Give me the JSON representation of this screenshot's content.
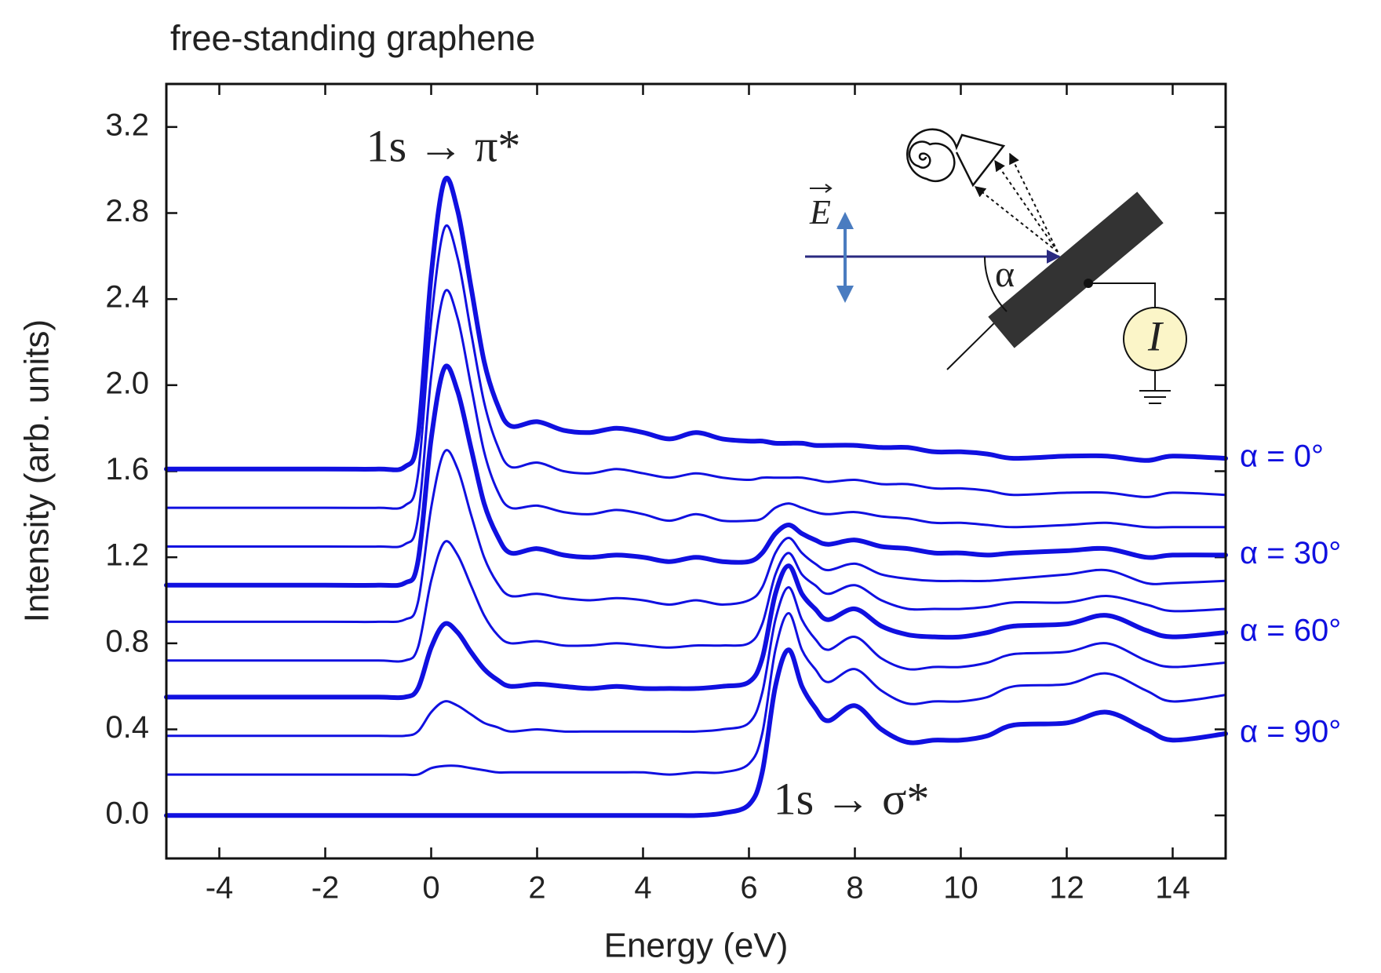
{
  "chart_data": {
    "type": "line",
    "title": "free-standing graphene",
    "xlabel": "Energy (eV)",
    "ylabel": "Intensity (arb. units)",
    "xlim": [
      -5,
      15
    ],
    "ylim": [
      -0.2,
      3.4
    ],
    "xticks": [
      -4,
      -2,
      0,
      2,
      4,
      6,
      8,
      10,
      12,
      14
    ],
    "yticks": [
      {
        "value": 0,
        "label": "0.0"
      },
      0.4,
      0.8,
      1.2,
      1.6,
      {
        "value": 2,
        "label": "2.0"
      },
      2.4,
      2.8,
      3.2
    ],
    "annotations": [
      "1s → π*",
      "1s → σ*"
    ],
    "x": [
      -5,
      -2,
      -1,
      -0.5,
      -0.25,
      0,
      0.25,
      0.5,
      0.75,
      1,
      1.25,
      1.5,
      2,
      2.5,
      3,
      3.5,
      4,
      4.5,
      5,
      5.5,
      6,
      6.25,
      6.5,
      6.75,
      7,
      7.25,
      7.5,
      8,
      8.5,
      9,
      9.5,
      10,
      10.5,
      11,
      12,
      12.75,
      13.5,
      14,
      15
    ],
    "series": [
      {
        "name": "α = 0°",
        "color": "#1010e0",
        "values": [
          1.61,
          1.61,
          1.61,
          1.62,
          1.76,
          2.51,
          2.95,
          2.81,
          2.46,
          2.11,
          1.91,
          1.81,
          1.83,
          1.79,
          1.78,
          1.8,
          1.78,
          1.75,
          1.78,
          1.75,
          1.74,
          1.74,
          1.73,
          1.73,
          1.73,
          1.72,
          1.72,
          1.72,
          1.71,
          1.71,
          1.69,
          1.69,
          1.68,
          1.66,
          1.67,
          1.67,
          1.65,
          1.67,
          1.66
        ]
      },
      {
        "color": "#1010e0",
        "values": [
          1.43,
          1.43,
          1.43,
          1.44,
          1.58,
          2.3,
          2.73,
          2.59,
          2.25,
          1.92,
          1.72,
          1.62,
          1.64,
          1.6,
          1.59,
          1.61,
          1.59,
          1.57,
          1.59,
          1.57,
          1.56,
          1.57,
          1.57,
          1.57,
          1.57,
          1.56,
          1.55,
          1.56,
          1.54,
          1.54,
          1.52,
          1.52,
          1.51,
          1.49,
          1.5,
          1.5,
          1.48,
          1.5,
          1.49
        ]
      },
      {
        "color": "#1010e0",
        "values": [
          1.25,
          1.25,
          1.25,
          1.26,
          1.38,
          2.04,
          2.43,
          2.31,
          2.0,
          1.69,
          1.51,
          1.43,
          1.44,
          1.41,
          1.4,
          1.42,
          1.4,
          1.37,
          1.4,
          1.37,
          1.37,
          1.38,
          1.43,
          1.45,
          1.43,
          1.41,
          1.4,
          1.41,
          1.39,
          1.38,
          1.36,
          1.36,
          1.35,
          1.34,
          1.35,
          1.36,
          1.34,
          1.34,
          1.34
        ]
      },
      {
        "name": "α = 30°",
        "color": "#1010e0",
        "values": [
          1.07,
          1.07,
          1.07,
          1.08,
          1.18,
          1.75,
          2.08,
          1.97,
          1.71,
          1.45,
          1.3,
          1.22,
          1.24,
          1.21,
          1.2,
          1.21,
          1.2,
          1.18,
          1.2,
          1.18,
          1.18,
          1.22,
          1.31,
          1.35,
          1.31,
          1.28,
          1.26,
          1.28,
          1.25,
          1.24,
          1.22,
          1.22,
          1.21,
          1.22,
          1.23,
          1.24,
          1.2,
          1.21,
          1.21
        ]
      },
      {
        "color": "#1010e0",
        "values": [
          0.9,
          0.9,
          0.9,
          0.91,
          0.99,
          1.43,
          1.69,
          1.61,
          1.4,
          1.2,
          1.08,
          1.02,
          1.03,
          1.01,
          1.0,
          1.01,
          1.0,
          0.98,
          1.0,
          0.98,
          1.0,
          1.06,
          1.22,
          1.29,
          1.22,
          1.17,
          1.14,
          1.17,
          1.12,
          1.1,
          1.09,
          1.09,
          1.09,
          1.1,
          1.12,
          1.14,
          1.08,
          1.08,
          1.09
        ]
      },
      {
        "color": "#1010e0",
        "values": [
          0.72,
          0.72,
          0.72,
          0.72,
          0.78,
          1.09,
          1.27,
          1.21,
          1.07,
          0.93,
          0.84,
          0.8,
          0.81,
          0.79,
          0.79,
          0.8,
          0.79,
          0.78,
          0.79,
          0.79,
          0.8,
          0.89,
          1.12,
          1.22,
          1.12,
          1.07,
          1.03,
          1.07,
          1.0,
          0.96,
          0.96,
          0.96,
          0.97,
          0.99,
          0.99,
          1.02,
          0.98,
          0.95,
          0.96
        ]
      },
      {
        "name": "α = 60°",
        "color": "#1010e0",
        "values": [
          0.55,
          0.55,
          0.55,
          0.55,
          0.59,
          0.78,
          0.89,
          0.85,
          0.76,
          0.68,
          0.63,
          0.6,
          0.61,
          0.6,
          0.59,
          0.6,
          0.59,
          0.59,
          0.59,
          0.6,
          0.62,
          0.73,
          1.03,
          1.16,
          1.03,
          0.96,
          0.91,
          0.96,
          0.88,
          0.84,
          0.83,
          0.83,
          0.85,
          0.88,
          0.89,
          0.93,
          0.86,
          0.83,
          0.85
        ]
      },
      {
        "color": "#1010e0",
        "values": [
          0.37,
          0.37,
          0.37,
          0.37,
          0.39,
          0.48,
          0.53,
          0.51,
          0.47,
          0.43,
          0.41,
          0.39,
          0.4,
          0.39,
          0.39,
          0.39,
          0.39,
          0.39,
          0.39,
          0.4,
          0.43,
          0.57,
          0.91,
          1.06,
          0.91,
          0.82,
          0.77,
          0.83,
          0.73,
          0.68,
          0.69,
          0.69,
          0.71,
          0.75,
          0.76,
          0.8,
          0.72,
          0.69,
          0.71
        ]
      },
      {
        "color": "#1010e0",
        "values": [
          0.19,
          0.19,
          0.19,
          0.19,
          0.19,
          0.22,
          0.23,
          0.23,
          0.22,
          0.21,
          0.2,
          0.2,
          0.2,
          0.2,
          0.2,
          0.2,
          0.2,
          0.19,
          0.2,
          0.2,
          0.24,
          0.38,
          0.77,
          0.94,
          0.77,
          0.68,
          0.62,
          0.68,
          0.58,
          0.52,
          0.53,
          0.53,
          0.55,
          0.6,
          0.61,
          0.66,
          0.58,
          0.53,
          0.56
        ]
      },
      {
        "name": "α = 90°",
        "color": "#1010e0",
        "values": [
          0,
          0,
          0,
          0,
          0,
          0,
          0,
          0,
          0,
          0,
          0,
          0,
          0,
          0,
          0,
          0,
          0,
          0,
          0,
          0.01,
          0.05,
          0.2,
          0.6,
          0.77,
          0.6,
          0.5,
          0.44,
          0.51,
          0.4,
          0.34,
          0.35,
          0.35,
          0.37,
          0.42,
          0.43,
          0.48,
          0.4,
          0.35,
          0.38
        ]
      }
    ],
    "inset": {
      "labels": [
        "E",
        "α",
        "I"
      ]
    }
  }
}
